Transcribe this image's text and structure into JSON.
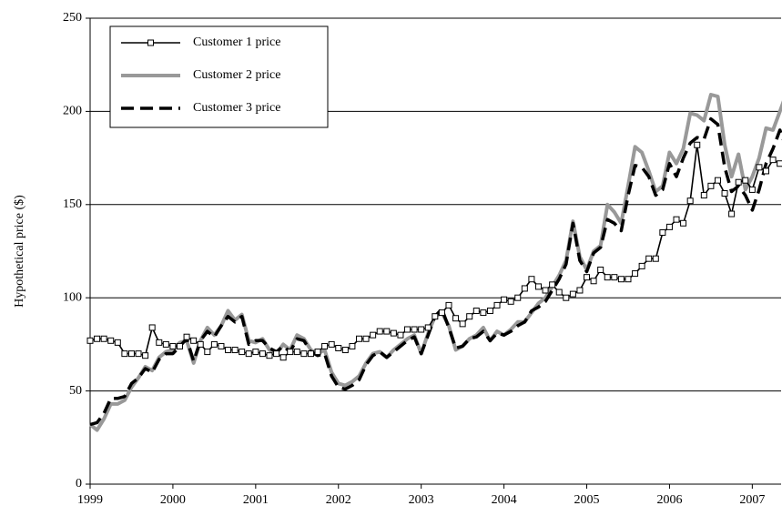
{
  "chart_data": {
    "type": "line",
    "y_label": "Hypothetical price ($)",
    "categories": [
      "1999",
      null,
      null,
      null,
      null,
      null,
      null,
      null,
      null,
      null,
      null,
      null,
      "2000",
      null,
      null,
      null,
      null,
      null,
      null,
      null,
      null,
      null,
      null,
      null,
      "2001",
      null,
      null,
      null,
      null,
      null,
      null,
      null,
      null,
      null,
      null,
      null,
      "2002",
      null,
      null,
      null,
      null,
      null,
      null,
      null,
      null,
      null,
      null,
      null,
      "2003",
      null,
      null,
      null,
      null,
      null,
      null,
      null,
      null,
      null,
      null,
      null,
      "2004",
      null,
      null,
      null,
      null,
      null,
      null,
      null,
      null,
      null,
      null,
      null,
      "2005",
      null,
      null,
      null,
      null,
      null,
      null,
      null,
      null,
      null,
      null,
      null,
      "2006",
      null,
      null,
      null,
      null,
      null,
      null,
      null,
      null,
      null,
      null,
      null,
      "2007",
      null,
      null,
      null,
      null,
      null,
      null
    ],
    "series": [
      {
        "name": "Customer 1 price",
        "color": "#000000",
        "style": "solid-markers",
        "values": [
          77,
          78,
          78,
          77,
          76,
          70,
          70,
          70,
          69,
          84,
          76,
          75,
          74,
          74,
          79,
          77,
          75,
          71,
          75,
          74,
          72,
          72,
          71,
          70,
          71,
          70,
          69,
          70,
          68,
          71,
          71,
          70,
          70,
          71,
          74,
          75,
          73,
          72,
          74,
          78,
          78,
          80,
          82,
          82,
          81,
          80,
          83,
          83,
          83,
          84,
          90,
          92,
          96,
          89,
          86,
          90,
          93,
          92,
          93,
          96,
          99,
          98,
          100,
          105,
          110,
          106,
          104,
          107,
          103,
          100,
          102,
          104,
          111,
          109,
          115,
          111,
          111,
          110,
          110,
          113,
          117,
          121,
          121,
          135,
          138,
          142,
          140,
          152,
          182,
          155,
          160,
          163,
          156,
          145,
          162,
          163,
          158,
          170,
          168,
          174,
          172,
          168,
          168
        ]
      },
      {
        "name": "Customer 2 price",
        "color": "#999999",
        "style": "thick",
        "values": [
          32,
          29,
          35,
          43,
          43,
          45,
          52,
          57,
          63,
          61,
          68,
          71,
          72,
          76,
          77,
          65,
          77,
          84,
          80,
          85,
          93,
          88,
          91,
          77,
          76,
          78,
          72,
          70,
          75,
          72,
          80,
          78,
          72,
          70,
          72,
          60,
          54,
          53,
          55,
          58,
          65,
          70,
          71,
          68,
          72,
          75,
          78,
          80,
          70,
          81,
          90,
          92,
          85,
          72,
          74,
          78,
          80,
          84,
          77,
          82,
          80,
          83,
          87,
          87,
          92,
          97,
          100,
          106,
          112,
          120,
          141,
          122,
          115,
          125,
          128,
          150,
          146,
          140,
          160,
          181,
          178,
          168,
          157,
          160,
          178,
          172,
          180,
          199,
          198,
          195,
          209,
          208,
          182,
          165,
          177,
          158,
          165,
          175,
          191,
          190,
          200,
          210,
          219
        ]
      },
      {
        "name": "Customer 3 price",
        "color": "#000000",
        "style": "dashed",
        "values": [
          32,
          33,
          38,
          46,
          46,
          47,
          54,
          57,
          62,
          60,
          67,
          70,
          70,
          74,
          78,
          66,
          77,
          82,
          79,
          85,
          90,
          87,
          90,
          75,
          77,
          77,
          73,
          71,
          74,
          71,
          78,
          77,
          71,
          69,
          70,
          58,
          52,
          51,
          53,
          56,
          64,
          69,
          71,
          68,
          71,
          74,
          77,
          79,
          70,
          80,
          90,
          94,
          84,
          73,
          74,
          78,
          79,
          82,
          77,
          81,
          80,
          82,
          85,
          87,
          93,
          95,
          98,
          104,
          110,
          118,
          140,
          120,
          114,
          124,
          127,
          142,
          140,
          136,
          155,
          171,
          170,
          165,
          155,
          158,
          172,
          165,
          175,
          183,
          186,
          185,
          196,
          193,
          170,
          157,
          160,
          155,
          147,
          158,
          172,
          180,
          190,
          180,
          196
        ]
      }
    ],
    "ylim": [
      0,
      250
    ],
    "yticks": [
      0,
      50,
      100,
      150,
      200,
      250
    ],
    "grid": true,
    "legend": "upper left"
  }
}
